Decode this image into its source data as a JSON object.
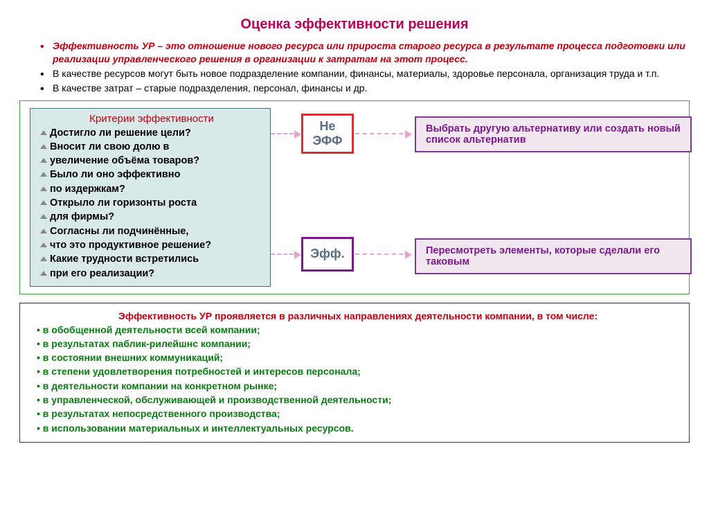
{
  "colors": {
    "title": "#b8005a",
    "red_text": "#c00010",
    "green_border": "#39a53b",
    "criteria_bg": "#d9e8e8",
    "criteria_border": "#4a6b7a",
    "node_ne_border": "#d83030",
    "node_ef_border": "#7a1a8a",
    "node_ne_text": "#5a6a80",
    "node_ef_text": "#5a6a80",
    "outcome1_border": "#7f3b8f",
    "outcome2_border": "#7f3b8f",
    "outcome_bg": "#f2e6f0",
    "outcome_text": "#7a1a8a",
    "arrow": "#e7a2d0",
    "green_text": "#0a7a12"
  },
  "title": "Оценка эффективности решения",
  "intro": {
    "b1_red": "Эффективность УР – это отношение нового ресурса или прироста старого ресурса в результате процесса подготовки или реализации управленческого решения в организации к затратам на этот процесс.",
    "b2": "В качестве ресурсов могут быть новое подразделение компании, финансы, материалы, здоровье персонала, организация труда и т.п.",
    "b3": "В качестве затрат – старые подразделения, персонал, финансы и др."
  },
  "criteria": {
    "title": "Критерии эффективности",
    "items": [
      "Достигло ли решение цели?",
      "Вносит ли свою долю в",
      "увеличение объёма товаров?",
      "Было ли оно эффективно",
      "по издержкам?",
      "Открыло ли горизонты роста",
      "для фирмы?",
      "Согласны ли подчинённые,",
      "что это продуктивное решение?",
      "Какие трудности встретились",
      "при его реализации?"
    ]
  },
  "nodes": {
    "not_eff": "Не ЭФФ",
    "eff": "Эфф."
  },
  "outcomes": {
    "o1": "Выбрать другую альтернативу или создать новый список альтернатив",
    "o2": "Пересмотреть элементы, которые сделали его таковым"
  },
  "bottom": {
    "heading": "Эффективность УР проявляется в различных направлениях деятельности компании, в том числе:",
    "items": [
      "в обобщенной деятельности всей компании;",
      "в результатах паблик-рилейшнс компании;",
      "в состоянии внешних коммуникаций;",
      "в степени удовлетворения потребностей и интересов персонала;",
      "в деятельности компании на конкретном рынке;",
      "в управленческой, обслуживающей и производственной деятельности;",
      "в результатах непосредственного производства;",
      "в использовании материальных и интеллектуальных ресурсов."
    ]
  }
}
